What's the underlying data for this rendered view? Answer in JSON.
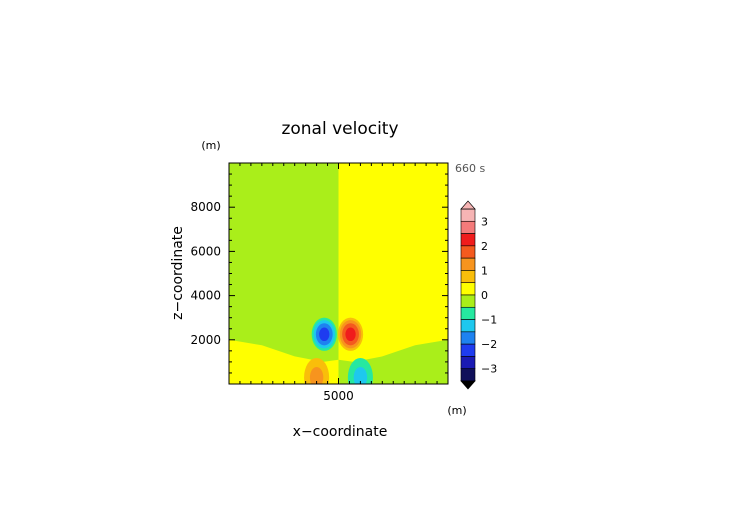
{
  "chart_data": {
    "type": "heatmap",
    "title": "zonal velocity",
    "xlabel": "x−coordinate",
    "ylabel": "z−coordinate",
    "x_unit": "(m)",
    "y_unit": "(m)",
    "time_label": "660 s",
    "xlim": [
      0,
      10000
    ],
    "ylim": [
      0,
      10000
    ],
    "x_ticks": [
      {
        "value": 5000,
        "label": "5000"
      }
    ],
    "y_ticks": [
      {
        "value": 2000,
        "label": "2000"
      },
      {
        "value": 4000,
        "label": "4000"
      },
      {
        "value": 6000,
        "label": "6000"
      },
      {
        "value": 8000,
        "label": "8000"
      }
    ],
    "colorbar": {
      "min": -3.5,
      "max": 3.5,
      "tick_labels": [
        {
          "value": 3,
          "label": "3"
        },
        {
          "value": 2,
          "label": "2"
        },
        {
          "value": 1,
          "label": "1"
        },
        {
          "value": 0,
          "label": "0"
        },
        {
          "value": -1,
          "label": "−1"
        },
        {
          "value": -2,
          "label": "−2"
        },
        {
          "value": -3,
          "label": "−3"
        }
      ],
      "bands": [
        {
          "from": 3.0,
          "to": 3.5,
          "color": "#f6b4b4"
        },
        {
          "from": 2.5,
          "to": 3.0,
          "color": "#f47a7a"
        },
        {
          "from": 2.0,
          "to": 2.5,
          "color": "#f01c1c"
        },
        {
          "from": 1.5,
          "to": 2.0,
          "color": "#f45a1e"
        },
        {
          "from": 1.0,
          "to": 1.5,
          "color": "#f7941e"
        },
        {
          "from": 0.5,
          "to": 1.0,
          "color": "#f9be0a"
        },
        {
          "from": 0.0,
          "to": 0.5,
          "color": "#ffff00"
        },
        {
          "from": -0.5,
          "to": 0.0,
          "color": "#aaee1a"
        },
        {
          "from": -1.0,
          "to": -0.5,
          "color": "#26e8a0"
        },
        {
          "from": -1.5,
          "to": -1.0,
          "color": "#1ec8ee"
        },
        {
          "from": -2.0,
          "to": -1.5,
          "color": "#1e82f0"
        },
        {
          "from": -2.5,
          "to": -2.0,
          "color": "#1e3cf0"
        },
        {
          "from": -3.0,
          "to": -2.5,
          "color": "#1a1ab4"
        },
        {
          "from": -3.5,
          "to": -3.0,
          "color": "#10105a"
        }
      ]
    },
    "field": {
      "background": [
        {
          "x_from": 0,
          "x_to": 5000,
          "value": -0.25
        },
        {
          "x_from": 5000,
          "x_to": 10000,
          "value": 0.25
        }
      ],
      "boundary_layer_height_m": [
        {
          "x": 0,
          "z": 2000
        },
        {
          "x": 1500,
          "z": 1750
        },
        {
          "x": 3000,
          "z": 1250
        },
        {
          "x": 4300,
          "z": 1000
        },
        {
          "x": 5000,
          "z": 1100
        },
        {
          "x": 5700,
          "z": 1000
        },
        {
          "x": 7000,
          "z": 1250
        },
        {
          "x": 8500,
          "z": 1750
        },
        {
          "x": 10000,
          "z": 2000
        }
      ],
      "boundary_layer_values": {
        "left": 0.25,
        "right": -0.25
      },
      "cells": [
        {
          "x": 4350,
          "z": 2250,
          "rx": 650,
          "rz": 850,
          "peak": -2.3
        },
        {
          "x": 5550,
          "z": 2250,
          "rx": 650,
          "rz": 850,
          "peak": 2.3
        },
        {
          "x": 4000,
          "z": 300,
          "rx": 750,
          "rz": 1150,
          "peak": 1.2
        },
        {
          "x": 6000,
          "z": 300,
          "rx": 750,
          "rz": 1150,
          "peak": -1.2
        }
      ]
    }
  }
}
